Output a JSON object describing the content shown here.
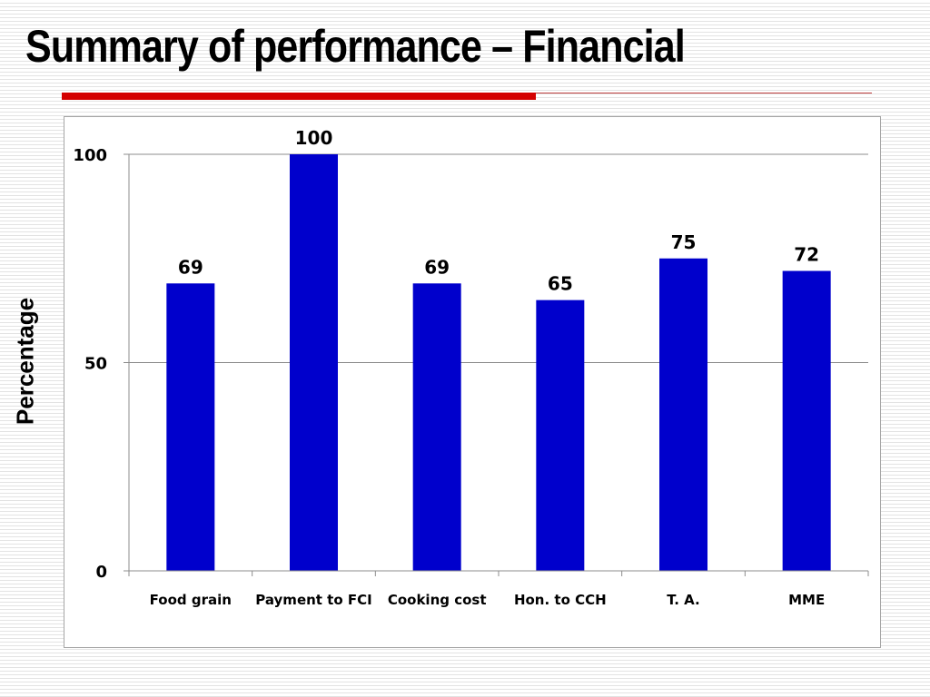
{
  "slide": {
    "title": "Summary of performance – Financial",
    "accent_color": "#d40000"
  },
  "chart_data": {
    "type": "bar",
    "categories": [
      "Food grain",
      "Payment to FCI",
      "Cooking cost",
      "Hon. to CCH",
      "T. A.",
      "MME"
    ],
    "values": [
      69,
      100,
      69,
      65,
      75,
      72
    ],
    "data_labels": [
      "69",
      "100",
      "69",
      "65",
      "75",
      "72"
    ],
    "title": "",
    "xlabel": "",
    "ylabel": "Percentage",
    "ylim": [
      0,
      100
    ],
    "yticks": [
      0,
      50,
      100
    ],
    "ytick_labels": [
      "0",
      "50",
      "100"
    ],
    "bar_color": "#0000cc",
    "grid": true,
    "legend": false
  }
}
